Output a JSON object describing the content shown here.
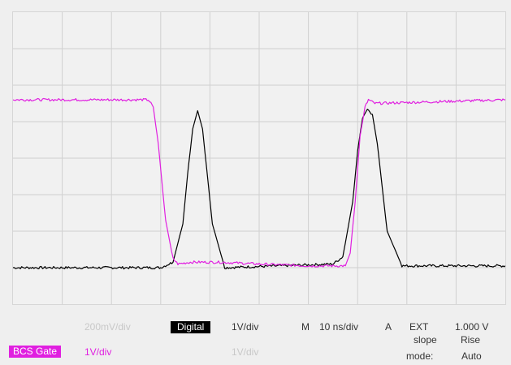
{
  "colors": {
    "screen_bg": "#f1f1f1",
    "grid": "#d0d0d0",
    "trace_digital": "#000000",
    "trace_gate": "#e020e0"
  },
  "chart_data": {
    "type": "line",
    "grid": true,
    "divisions": {
      "x": 10,
      "y": 8
    },
    "xlim": [
      0,
      100
    ],
    "x_unit": "ns",
    "ylim": [
      0,
      8
    ],
    "y_unit": "div",
    "series": [
      {
        "name": "Digital",
        "color": "#000000",
        "x": [
          0,
          30,
          32.5,
          34.5,
          35.5,
          36.5,
          37.5,
          38.5,
          40.5,
          43,
          65,
          67,
          69,
          70,
          71,
          72,
          73,
          74,
          76,
          79,
          100
        ],
        "y": [
          1.0,
          1.0,
          1.15,
          2.2,
          3.6,
          4.8,
          5.3,
          4.8,
          2.2,
          1.0,
          1.1,
          1.3,
          2.8,
          4.2,
          5.1,
          5.35,
          5.2,
          4.4,
          2.0,
          1.05,
          1.05
        ]
      },
      {
        "name": "BCS Gate",
        "color": "#e020e0",
        "x": [
          0,
          27.5,
          28.5,
          29.5,
          31,
          32.5,
          33.5,
          36,
          42,
          50,
          60,
          67.5,
          68.5,
          69.5,
          70.5,
          71.5,
          72.2,
          73.5,
          100
        ],
        "y": [
          5.6,
          5.6,
          5.4,
          4.4,
          2.3,
          1.25,
          1.1,
          1.15,
          1.15,
          1.1,
          1.05,
          1.05,
          1.4,
          2.8,
          4.6,
          5.4,
          5.6,
          5.5,
          5.6
        ]
      }
    ]
  },
  "readouts": {
    "ch1_scale": "200mV/div",
    "ch2_name": "Digital",
    "ch2_scale": "1V/div",
    "ch3_name": "BCS Gate",
    "ch3_scale": "1V/div",
    "ch4_scale": "1V/div",
    "timebase_label": "M",
    "timebase_value": "10 ns/div",
    "trigger_label": "A",
    "trigger_source": "EXT",
    "trigger_slope_label": "slope",
    "trigger_mode_label": "mode:",
    "trigger_level": "1.000 V",
    "trigger_slope": "Rise",
    "trigger_mode": "Auto"
  }
}
